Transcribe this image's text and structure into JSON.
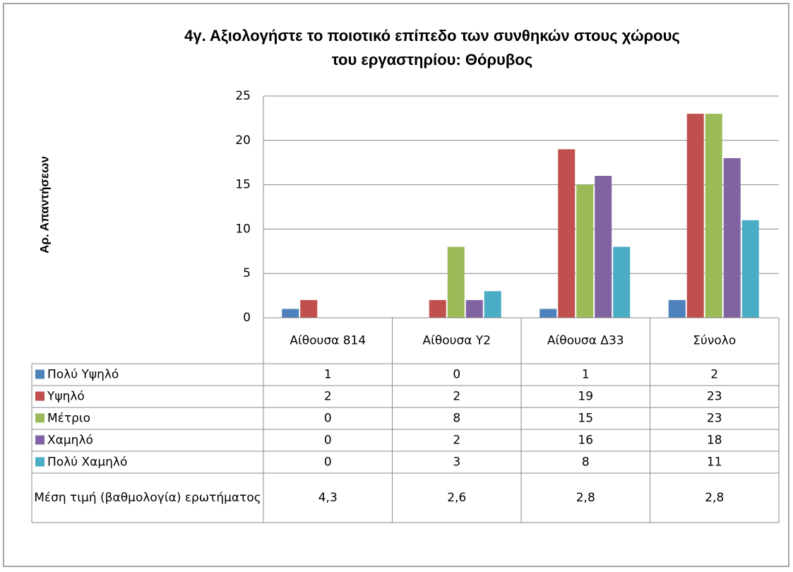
{
  "chart_data": {
    "type": "bar",
    "title": [
      "4γ. Αξιολογήστε το ποιοτικό επίπεδο των συνθηκών στους χώρους",
      "του εργαστηρίου: Θόρυβος"
    ],
    "y_label": "Αρ. Απαντήσεων",
    "categories": [
      "Αίθουσα 814",
      "Αίθουσα Υ2",
      "Αίθουσα Δ33",
      "Σύνολο"
    ],
    "series": [
      {
        "name": "Πολύ Υψηλό",
        "color": "#4f81bd",
        "values": [
          1,
          0,
          1,
          2
        ]
      },
      {
        "name": "Υψηλό",
        "color": "#c0504d",
        "values": [
          2,
          2,
          19,
          23
        ]
      },
      {
        "name": "Μέτριο",
        "color": "#9bbb59",
        "values": [
          0,
          8,
          15,
          23
        ]
      },
      {
        "name": "Χαμηλό",
        "color": "#8064a2",
        "values": [
          0,
          2,
          16,
          18
        ]
      },
      {
        "name": "Πολύ Χαμηλό",
        "color": "#4bacc6",
        "values": [
          0,
          3,
          8,
          11
        ]
      }
    ],
    "mean_row": {
      "label": "Μέση τιμή (βαθμολογία) ερωτήματος",
      "values": [
        4.3,
        2.6,
        2.8,
        2.8
      ],
      "value_labels": [
        "4,3",
        "2,6",
        "2,8",
        "2,8"
      ]
    },
    "ylim": [
      0,
      25
    ],
    "yticks": [
      0,
      5,
      10,
      15,
      20,
      25
    ],
    "grid": true
  }
}
